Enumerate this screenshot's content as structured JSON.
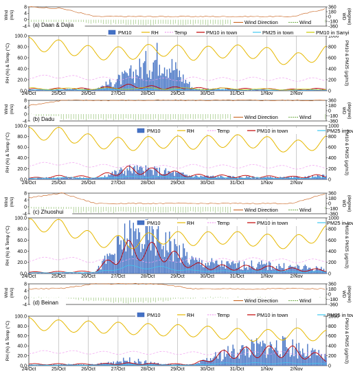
{
  "colors": {
    "pm10": "#2f55b5",
    "pm10_fill": "#4472c4",
    "rh": "#e6b800",
    "temp": "#f19ef0",
    "pm10_town": "#c00000",
    "pm25_town": "#3ec8f0",
    "pm10_sanyi": "#cccc00",
    "wind": "#70ad47",
    "wind_dir": "#c55a11",
    "grid": "#9a9a9a"
  },
  "x_tick_labels": [
    "24/Oct",
    "25/Oct",
    "26/Oct",
    "27/Oct",
    "28/Oct",
    "29/Oct",
    "30/Oct",
    "31/Oct",
    "1/Nov",
    "2/Nov"
  ],
  "axis_labels": {
    "wind_left_top": "Wind",
    "wind_left_bottom": "(m/s)",
    "wd_right_top": "WD",
    "wd_right_bottom": "(degree)",
    "main_left": "RH (%) & Temp (°C)",
    "main_right": "PM10 & PM25 (μg/m3)"
  },
  "legend": {
    "wind_direction": "Wind Direction",
    "wind": "Wind",
    "pm10": "PM10",
    "rh": "RH",
    "temp": "Temp",
    "pm10_town": "PM10 in town",
    "pm25_town": "PM25 in town",
    "pm10_sanyi": "PM10 in Sanyi"
  },
  "panels": [
    {
      "title": "(a) Daan & Dajia",
      "has_sanyi": true
    },
    {
      "title": "(b) Dadu",
      "has_sanyi": false
    },
    {
      "title": "(c) Zhuoshui",
      "has_sanyi": false
    },
    {
      "title": "(d) Beinan",
      "has_sanyi": false
    }
  ],
  "chart_data": [
    {
      "type": "line",
      "title": "(a) Daan & Dajia — Wind",
      "xlabel": "",
      "ylabel": "Wind (m/s)",
      "ylabel_right": "WD (degree)",
      "x": [
        "24/Oct",
        "25/Oct",
        "26/Oct",
        "27/Oct",
        "28/Oct",
        "29/Oct",
        "30/Oct",
        "31/Oct",
        "1/Nov",
        "2/Nov"
      ],
      "ylim": [
        -4,
        8
      ],
      "ylim_right": [
        -360,
        360
      ],
      "y_ticks": [
        8,
        4,
        0,
        -4
      ],
      "y_ticks_right": [
        360,
        180,
        0,
        -180,
        -360
      ],
      "grid": false,
      "legend_position": "bottom-right",
      "series": [
        {
          "name": "Wind Direction",
          "values": [
            360,
            300,
            0,
            0,
            0,
            0,
            0,
            0,
            0,
            300
          ]
        },
        {
          "name": "Wind",
          "values": [
            -2,
            -3,
            -2,
            -3,
            -3,
            -3,
            -3,
            0,
            0,
            -2
          ]
        }
      ]
    },
    {
      "type": "line",
      "title": "(a) Daan & Dajia",
      "xlabel": "",
      "ylabel": "RH (%) & Temp (°C)",
      "ylabel_right": "PM10 & PM25 (μg/m3)",
      "x": [
        "24/Oct",
        "25/Oct",
        "26/Oct",
        "27/Oct",
        "28/Oct",
        "29/Oct",
        "30/Oct",
        "31/Oct",
        "1/Nov",
        "2/Nov"
      ],
      "ylim": [
        0,
        100
      ],
      "ylim_right": [
        0,
        1000
      ],
      "y_ticks": [
        0,
        20,
        40,
        60,
        80,
        100
      ],
      "y_ticks_right": [
        0,
        200,
        400,
        600,
        800,
        1000
      ],
      "grid": false,
      "legend_position": "top",
      "series": [
        {
          "name": "PM10",
          "values": [
            20,
            30,
            40,
            350,
            850,
            40,
            30,
            20,
            0,
            40
          ]
        },
        {
          "name": "RH",
          "values": [
            85,
            80,
            68,
            68,
            75,
            67,
            72,
            70,
            55,
            70
          ]
        },
        {
          "name": "Temp",
          "values": [
            25,
            26,
            22,
            22,
            20,
            22,
            21,
            22,
            20,
            21
          ]
        },
        {
          "name": "PM10 in town",
          "values": [
            40,
            50,
            50,
            120,
            80,
            60,
            50,
            40,
            30,
            50
          ]
        },
        {
          "name": "PM25 in town",
          "values": [
            20,
            20,
            25,
            40,
            30,
            25,
            20,
            20,
            15,
            20
          ]
        },
        {
          "name": "PM10 in Sanyi",
          "values": [
            60,
            50,
            50,
            60,
            60,
            50,
            50,
            40,
            30,
            40
          ]
        }
      ]
    },
    {
      "type": "line",
      "title": "(b) Dadu — Wind",
      "xlabel": "",
      "ylabel": "Wind (m/s)",
      "ylabel_right": "WD (degree)",
      "x": [
        "24/Oct",
        "25/Oct",
        "26/Oct",
        "27/Oct",
        "28/Oct",
        "29/Oct",
        "30/Oct",
        "31/Oct",
        "1/Nov",
        "2/Nov"
      ],
      "ylim": [
        -4,
        8
      ],
      "ylim_right": [
        -360,
        360
      ],
      "y_ticks": [
        8,
        4,
        0,
        -4
      ],
      "y_ticks_right": [
        360,
        180,
        0,
        -180,
        -360
      ],
      "grid": false,
      "legend_position": "bottom-right",
      "series": [
        {
          "name": "Wind Direction",
          "values": [
            180,
            360,
            360,
            360,
            360,
            360,
            360,
            360,
            360,
            360
          ]
        },
        {
          "name": "Wind",
          "values": [
            0,
            -3,
            -3,
            -3,
            -3,
            -3,
            -3,
            -3,
            -3,
            -3
          ]
        }
      ]
    },
    {
      "type": "line",
      "title": "(b) Dadu",
      "xlabel": "",
      "ylabel": "RH (%) & Temp (°C)",
      "ylabel_right": "PM10 & PM25 (μg/m3)",
      "x": [
        "24/Oct",
        "25/Oct",
        "26/Oct",
        "27/Oct",
        "28/Oct",
        "29/Oct",
        "30/Oct",
        "31/Oct",
        "1/Nov",
        "2/Nov"
      ],
      "ylim": [
        0,
        100
      ],
      "ylim_right": [
        0,
        1000
      ],
      "y_ticks": [
        0,
        20,
        40,
        60,
        80,
        100
      ],
      "y_ticks_right": [
        0,
        200,
        400,
        600,
        800,
        1000
      ],
      "grid": false,
      "legend_position": "top",
      "series": [
        {
          "name": "PM10",
          "values": [
            20,
            50,
            30,
            250,
            200,
            80,
            60,
            50,
            40,
            80
          ]
        },
        {
          "name": "RH",
          "values": [
            85,
            85,
            70,
            65,
            70,
            68,
            72,
            70,
            60,
            70
          ]
        },
        {
          "name": "Temp",
          "values": [
            28,
            30,
            25,
            25,
            23,
            25,
            24,
            25,
            22,
            24
          ]
        },
        {
          "name": "PM10 in town",
          "values": [
            30,
            80,
            60,
            250,
            200,
            100,
            80,
            70,
            60,
            100
          ]
        },
        {
          "name": "PM25 in town",
          "values": [
            20,
            40,
            30,
            60,
            60,
            40,
            30,
            30,
            25,
            40
          ]
        }
      ]
    },
    {
      "type": "line",
      "title": "(c) Zhuoshui — Wind",
      "xlabel": "",
      "ylabel": "Wind (m/s)",
      "ylabel_right": "WD (degree)",
      "x": [
        "24/Oct",
        "25/Oct",
        "26/Oct",
        "27/Oct",
        "28/Oct",
        "29/Oct",
        "30/Oct",
        "31/Oct",
        "1/Nov",
        "2/Nov"
      ],
      "ylim": [
        -4,
        8
      ],
      "ylim_right": [
        -360,
        360
      ],
      "y_ticks": [
        8,
        4,
        0,
        -4
      ],
      "y_ticks_right": [
        360,
        180,
        0,
        -180,
        -360
      ],
      "grid": false,
      "legend_position": "bottom-right",
      "series": [
        {
          "name": "Wind Direction",
          "values": [
            200,
            360,
            0,
            0,
            0,
            0,
            0,
            0,
            0,
            360
          ]
        },
        {
          "name": "Wind",
          "values": [
            -1,
            -3,
            -3,
            -3,
            -3,
            -3,
            -3,
            -3,
            -2,
            -1
          ]
        }
      ]
    },
    {
      "type": "line",
      "title": "(c) Zhuoshui",
      "xlabel": "",
      "ylabel": "RH (%) & Temp (°C)",
      "ylabel_right": "PM10 & PM25 (μg/m3)",
      "x": [
        "24/Oct",
        "25/Oct",
        "26/Oct",
        "27/Oct",
        "28/Oct",
        "29/Oct",
        "30/Oct",
        "31/Oct",
        "1/Nov",
        "2/Nov"
      ],
      "ylim": [
        0,
        100
      ],
      "ylim_right": [
        0,
        1000
      ],
      "y_ticks": [
        0,
        20,
        40,
        60,
        80,
        100
      ],
      "y_ticks_right": [
        0,
        200,
        400,
        600,
        800,
        1000
      ],
      "grid": false,
      "legend_position": "top",
      "series": [
        {
          "name": "PM10",
          "values": [
            10,
            20,
            30,
            850,
            800,
            280,
            200,
            200,
            150,
            100
          ]
        },
        {
          "name": "RH",
          "values": [
            88,
            85,
            60,
            55,
            65,
            62,
            65,
            60,
            55,
            75
          ]
        },
        {
          "name": "Temp",
          "values": [
            25,
            28,
            22,
            24,
            22,
            25,
            24,
            26,
            22,
            24
          ]
        },
        {
          "name": "PM10 in town",
          "values": [
            30,
            40,
            50,
            600,
            550,
            200,
            150,
            150,
            100,
            80
          ]
        },
        {
          "name": "PM25 in town",
          "values": [
            15,
            20,
            25,
            150,
            130,
            60,
            50,
            50,
            40,
            30
          ]
        }
      ]
    },
    {
      "type": "line",
      "title": "(d) Beinan — Wind",
      "xlabel": "",
      "ylabel": "Wind (m/s)",
      "ylabel_right": "WD (degree)",
      "x": [
        "24/Oct",
        "25/Oct",
        "26/Oct",
        "27/Oct",
        "28/Oct",
        "29/Oct",
        "30/Oct",
        "31/Oct",
        "1/Nov",
        "2/Nov"
      ],
      "ylim": [
        -4,
        8
      ],
      "ylim_right": [
        -360,
        360
      ],
      "y_ticks": [
        8,
        4,
        0,
        -4
      ],
      "y_ticks_right": [
        360,
        180,
        0,
        -180,
        -360
      ],
      "grid": false,
      "legend_position": "bottom-right",
      "series": [
        {
          "name": "Wind Direction",
          "values": [
            180,
            200,
            360,
            360,
            360,
            180,
            180,
            180,
            200,
            180
          ]
        },
        {
          "name": "Wind",
          "values": [
            0,
            0,
            -2,
            -3,
            -2,
            0,
            0,
            0,
            -1,
            0
          ]
        }
      ]
    },
    {
      "type": "line",
      "title": "(d) Beinan",
      "xlabel": "",
      "ylabel": "RH (%) & Temp (°C)",
      "ylabel_right": "PM10 & PM25 (μg/m3)",
      "x": [
        "24/Oct",
        "25/Oct",
        "26/Oct",
        "27/Oct",
        "28/Oct",
        "29/Oct",
        "30/Oct",
        "31/Oct",
        "1/Nov",
        "2/Nov"
      ],
      "ylim": [
        0,
        100
      ],
      "ylim_right": [
        0,
        1000
      ],
      "y_ticks": [
        0,
        20,
        40,
        60,
        80,
        100
      ],
      "y_ticks_right": [
        0,
        200,
        400,
        600,
        800,
        1000
      ],
      "grid": false,
      "legend_position": "top",
      "series": [
        {
          "name": "PM10",
          "values": [
            20,
            30,
            30,
            150,
            40,
            20,
            350,
            500,
            500,
            200
          ]
        },
        {
          "name": "RH",
          "values": [
            85,
            80,
            78,
            75,
            72,
            70,
            65,
            60,
            65,
            60
          ]
        },
        {
          "name": "Temp",
          "values": [
            27,
            28,
            26,
            26,
            26,
            25,
            25,
            26,
            25,
            24
          ]
        },
        {
          "name": "PM10 in town",
          "values": [
            40,
            40,
            40,
            60,
            40,
            40,
            350,
            400,
            400,
            200
          ]
        },
        {
          "name": "PM25 in town",
          "values": [
            15,
            15,
            15,
            20,
            15,
            15,
            60,
            60,
            60,
            40
          ]
        }
      ]
    }
  ]
}
